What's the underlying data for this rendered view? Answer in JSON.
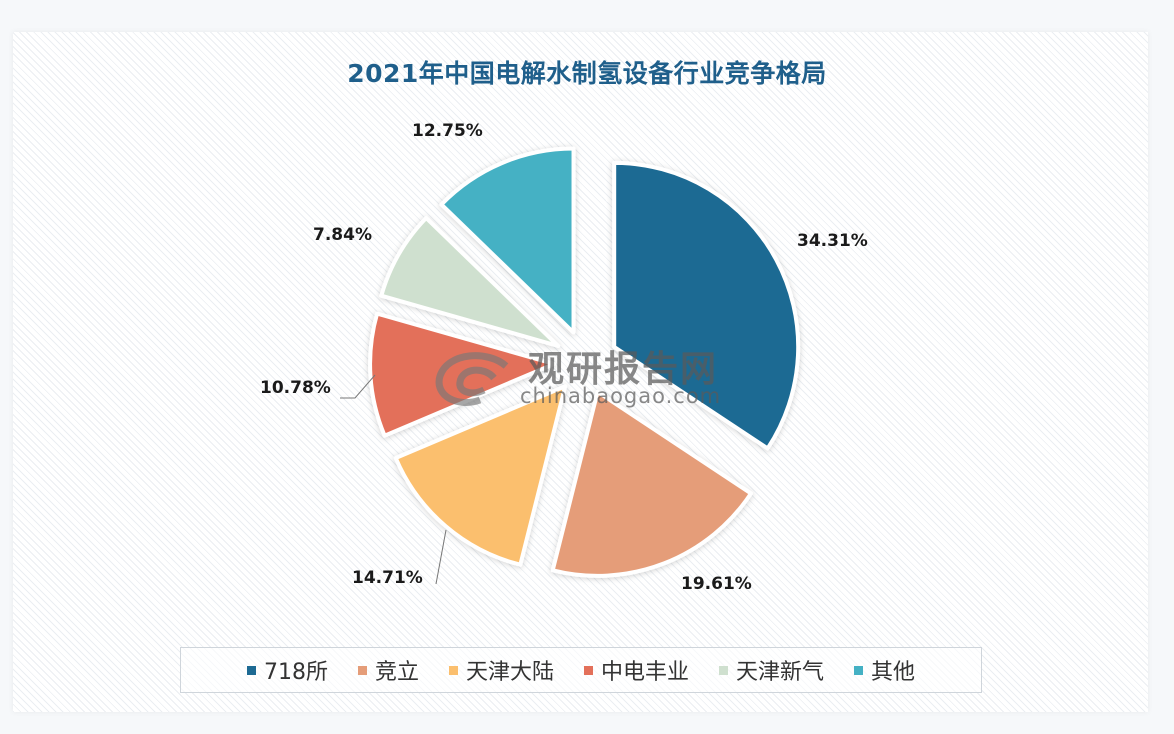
{
  "title": "2021年中国电解水制氢设备行业竞争格局",
  "chart_data": {
    "type": "pie",
    "title": "2021年中国电解水制氢设备行业竞争格局",
    "categories": [
      "718所",
      "竞立",
      "天津大陆",
      "中电丰业",
      "天津新气",
      "其他"
    ],
    "values": [
      34.31,
      19.61,
      14.71,
      10.78,
      7.84,
      12.75
    ],
    "unit": "%",
    "labels": [
      "34.31%",
      "19.61%",
      "14.71%",
      "10.78%",
      "7.84%",
      "12.75%"
    ],
    "colors": [
      "#1d6a93",
      "#e59d79",
      "#fbbf6e",
      "#e3705a",
      "#cfe0cf",
      "#44b1c4"
    ],
    "exploded": true,
    "start_angle_deg": 0,
    "direction": "clockwise",
    "legend_position": "bottom"
  },
  "legend": {
    "items": [
      {
        "label": "718所",
        "color": "#1d6a93"
      },
      {
        "label": "竞立",
        "color": "#e59d79"
      },
      {
        "label": "天津大陆",
        "color": "#fbbf6e"
      },
      {
        "label": "中电丰业",
        "color": "#e3705a"
      },
      {
        "label": "天津新气",
        "color": "#cfe0cf"
      },
      {
        "label": "其他",
        "color": "#44b1c4"
      }
    ]
  },
  "watermark": {
    "cn": "观研报告网",
    "en": "chinabaogao.com"
  }
}
